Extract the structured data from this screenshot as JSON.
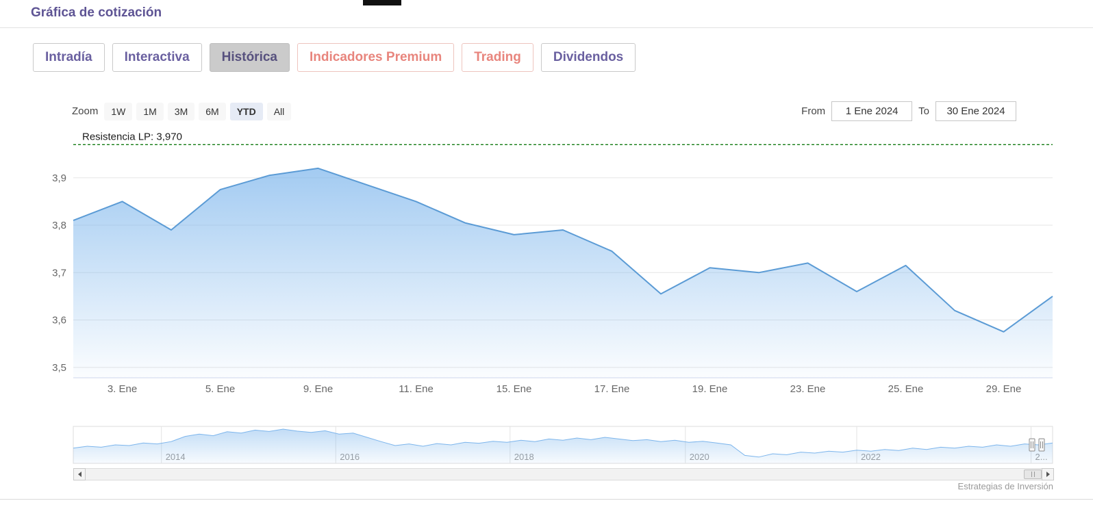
{
  "page": {
    "title": "Gráfica de cotización",
    "credit": "Estrategias de Inversión"
  },
  "colors": {
    "accent_purple": "#5e5494",
    "tab_purple": "#6a60a0",
    "accent_salmon": "#e8857d",
    "active_tab_bg": "#cbcbcb",
    "line_blue": "#5b9bd5",
    "fill_blue": "#7cb5ec",
    "resistance_green": "#117a11"
  },
  "tabs": [
    {
      "label": "Intradía",
      "style": "purple",
      "active": false
    },
    {
      "label": "Interactiva",
      "style": "purple",
      "active": false
    },
    {
      "label": "Histórica",
      "style": "purple",
      "active": true
    },
    {
      "label": "Indicadores Premium",
      "style": "salmon",
      "active": false
    },
    {
      "label": "Trading",
      "style": "salmon",
      "active": false
    },
    {
      "label": "Dividendos",
      "style": "purple",
      "active": false
    }
  ],
  "range_selector": {
    "zoom_label": "Zoom",
    "buttons": [
      "1W",
      "1M",
      "3M",
      "6M",
      "YTD",
      "All"
    ],
    "selected": "YTD",
    "from_label": "From",
    "from_value": "1 Ene 2024",
    "to_label": "To",
    "to_value": "30 Ene 2024"
  },
  "chart_data": {
    "type": "area",
    "title": "",
    "xlabel": "",
    "ylabel": "",
    "x": [
      "2 Ene",
      "3 Ene",
      "4 Ene",
      "5 Ene",
      "8 Ene",
      "9 Ene",
      "10 Ene",
      "11 Ene",
      "12 Ene",
      "15 Ene",
      "16 Ene",
      "17 Ene",
      "18 Ene",
      "19 Ene",
      "22 Ene",
      "23 Ene",
      "24 Ene",
      "25 Ene",
      "26 Ene",
      "29 Ene",
      "30 Ene"
    ],
    "values": [
      3.81,
      3.85,
      3.79,
      3.875,
      3.905,
      3.92,
      3.885,
      3.85,
      3.805,
      3.78,
      3.79,
      3.745,
      3.655,
      3.71,
      3.7,
      3.72,
      3.66,
      3.715,
      3.62,
      3.575,
      3.65
    ],
    "ylim": [
      3.478,
      3.982
    ],
    "grid": "horizontal",
    "yticks": [
      {
        "v": 3.5,
        "label": "3,5"
      },
      {
        "v": 3.6,
        "label": "3,6"
      },
      {
        "v": 3.7,
        "label": "3,7"
      },
      {
        "v": 3.8,
        "label": "3,8"
      },
      {
        "v": 3.9,
        "label": "3,9"
      }
    ],
    "xticks": [
      {
        "i": 1,
        "label": "3. Ene"
      },
      {
        "i": 3,
        "label": "5. Ene"
      },
      {
        "i": 5,
        "label": "9. Ene"
      },
      {
        "i": 7,
        "label": "11. Ene"
      },
      {
        "i": 9,
        "label": "15. Ene"
      },
      {
        "i": 11,
        "label": "17. Ene"
      },
      {
        "i": 13,
        "label": "19. Ene"
      },
      {
        "i": 15,
        "label": "23. Ene"
      },
      {
        "i": 17,
        "label": "25. Ene"
      },
      {
        "i": 19,
        "label": "29. Ene"
      }
    ],
    "annotation": {
      "label": "Resistencia LP: 3,970",
      "value": 3.97,
      "color": "#117a11",
      "style": "dashed"
    },
    "navigator": {
      "years": [
        {
          "label": "2014",
          "pos": 0.09
        },
        {
          "label": "2016",
          "pos": 0.268
        },
        {
          "label": "2018",
          "pos": 0.446
        },
        {
          "label": "2020",
          "pos": 0.625
        },
        {
          "label": "2022",
          "pos": 0.8
        },
        {
          "label": "2...",
          "pos": 0.978
        }
      ],
      "values": [
        0.42,
        0.48,
        0.45,
        0.52,
        0.5,
        0.58,
        0.55,
        0.62,
        0.78,
        0.85,
        0.8,
        0.92,
        0.88,
        0.97,
        0.93,
        1.0,
        0.94,
        0.9,
        0.95,
        0.85,
        0.88,
        0.75,
        0.62,
        0.5,
        0.55,
        0.48,
        0.56,
        0.52,
        0.6,
        0.57,
        0.63,
        0.6,
        0.66,
        0.62,
        0.7,
        0.66,
        0.73,
        0.68,
        0.75,
        0.7,
        0.65,
        0.68,
        0.62,
        0.66,
        0.6,
        0.63,
        0.58,
        0.52,
        0.2,
        0.15,
        0.25,
        0.22,
        0.3,
        0.27,
        0.33,
        0.3,
        0.36,
        0.33,
        0.38,
        0.35,
        0.42,
        0.38,
        0.45,
        0.42,
        0.48,
        0.45,
        0.52,
        0.48,
        0.55,
        0.52,
        0.58
      ]
    }
  }
}
